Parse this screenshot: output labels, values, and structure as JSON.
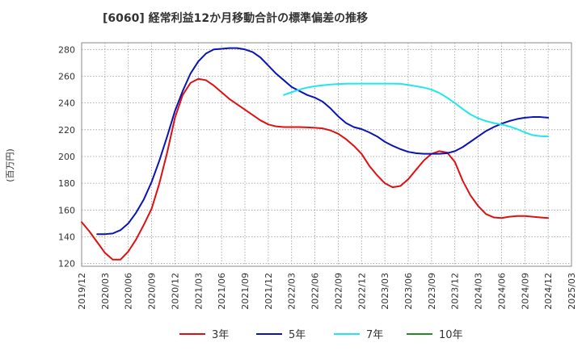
{
  "chart_data": {
    "type": "line",
    "title": "[6060]  経常利益12か月移動合計の標準偏差の推移",
    "ylabel": "(百万円)",
    "xlabel": "",
    "ylim": [
      118,
      285
    ],
    "yticks": [
      120,
      140,
      160,
      180,
      200,
      220,
      240,
      260,
      280
    ],
    "xlim": [
      "2019-12",
      "2025-03"
    ],
    "xticks": [
      "2019/12",
      "2020/03",
      "2020/06",
      "2020/09",
      "2020/12",
      "2021/03",
      "2021/06",
      "2021/09",
      "2021/12",
      "2022/03",
      "2022/06",
      "2022/09",
      "2022/12",
      "2023/03",
      "2023/06",
      "2023/09",
      "2023/12",
      "2024/03",
      "2024/06",
      "2024/09",
      "2024/12",
      "2025/03"
    ],
    "grid": true,
    "legend_position": "bottom",
    "series": [
      {
        "name": "3年",
        "color": "#dd1111",
        "points": [
          [
            "2019-12",
            151
          ],
          [
            "2020-01",
            144
          ],
          [
            "2020-02",
            136
          ],
          [
            "2020-03",
            128
          ],
          [
            "2020-04",
            123
          ],
          [
            "2020-05",
            123
          ],
          [
            "2020-06",
            129
          ],
          [
            "2020-07",
            138
          ],
          [
            "2020-08",
            149
          ],
          [
            "2020-09",
            161
          ],
          [
            "2020-10",
            180
          ],
          [
            "2020-11",
            203
          ],
          [
            "2020-12",
            229
          ],
          [
            "2021-01",
            246
          ],
          [
            "2021-02",
            255
          ],
          [
            "2021-03",
            258
          ],
          [
            "2021-04",
            257
          ],
          [
            "2021-05",
            253
          ],
          [
            "2021-06",
            248
          ],
          [
            "2021-07",
            243
          ],
          [
            "2021-08",
            239
          ],
          [
            "2021-09",
            235
          ],
          [
            "2021-10",
            231
          ],
          [
            "2021-11",
            227
          ],
          [
            "2021-12",
            224
          ],
          [
            "2022-01",
            222.5
          ],
          [
            "2022-02",
            222
          ],
          [
            "2022-03",
            222
          ],
          [
            "2022-04",
            222
          ],
          [
            "2022-05",
            221.8
          ],
          [
            "2022-06",
            221.5
          ],
          [
            "2022-07",
            221
          ],
          [
            "2022-08",
            219.5
          ],
          [
            "2022-09",
            217
          ],
          [
            "2022-10",
            213
          ],
          [
            "2022-11",
            208
          ],
          [
            "2022-12",
            202
          ],
          [
            "2023-01",
            193
          ],
          [
            "2023-02",
            186
          ],
          [
            "2023-03",
            180
          ],
          [
            "2023-04",
            177
          ],
          [
            "2023-05",
            178
          ],
          [
            "2023-06",
            183
          ],
          [
            "2023-07",
            190
          ],
          [
            "2023-08",
            197
          ],
          [
            "2023-09",
            202
          ],
          [
            "2023-10",
            204
          ],
          [
            "2023-11",
            203
          ],
          [
            "2023-12",
            196
          ],
          [
            "2024-01",
            182
          ],
          [
            "2024-02",
            171
          ],
          [
            "2024-03",
            163
          ],
          [
            "2024-04",
            157
          ],
          [
            "2024-05",
            154.5
          ],
          [
            "2024-06",
            154
          ],
          [
            "2024-07",
            155
          ],
          [
            "2024-08",
            155.5
          ],
          [
            "2024-09",
            155.5
          ],
          [
            "2024-10",
            155
          ],
          [
            "2024-11",
            154.5
          ],
          [
            "2024-12",
            154
          ]
        ]
      },
      {
        "name": "5年",
        "color": "#0a14b4",
        "points": [
          [
            "2020-02",
            142
          ],
          [
            "2020-03",
            142
          ],
          [
            "2020-04",
            142.5
          ],
          [
            "2020-05",
            145
          ],
          [
            "2020-06",
            150
          ],
          [
            "2020-07",
            158
          ],
          [
            "2020-08",
            168
          ],
          [
            "2020-09",
            181
          ],
          [
            "2020-10",
            197
          ],
          [
            "2020-11",
            215
          ],
          [
            "2020-12",
            234
          ],
          [
            "2021-01",
            249
          ],
          [
            "2021-02",
            262
          ],
          [
            "2021-03",
            271
          ],
          [
            "2021-04",
            277
          ],
          [
            "2021-05",
            280
          ],
          [
            "2021-06",
            280.5
          ],
          [
            "2021-07",
            281
          ],
          [
            "2021-08",
            281
          ],
          [
            "2021-09",
            280
          ],
          [
            "2021-10",
            278
          ],
          [
            "2021-11",
            274
          ],
          [
            "2021-12",
            268
          ],
          [
            "2022-01",
            262
          ],
          [
            "2022-02",
            257
          ],
          [
            "2022-03",
            252
          ],
          [
            "2022-04",
            249
          ],
          [
            "2022-05",
            246
          ],
          [
            "2022-06",
            244
          ],
          [
            "2022-07",
            241
          ],
          [
            "2022-08",
            236
          ],
          [
            "2022-09",
            230
          ],
          [
            "2022-10",
            225
          ],
          [
            "2022-11",
            222
          ],
          [
            "2022-12",
            220.5
          ],
          [
            "2023-01",
            218
          ],
          [
            "2023-02",
            215
          ],
          [
            "2023-03",
            211
          ],
          [
            "2023-04",
            208
          ],
          [
            "2023-05",
            205.5
          ],
          [
            "2023-06",
            203.5
          ],
          [
            "2023-07",
            202.5
          ],
          [
            "2023-08",
            202
          ],
          [
            "2023-09",
            202
          ],
          [
            "2023-10",
            202
          ],
          [
            "2023-11",
            202.5
          ],
          [
            "2023-12",
            204
          ],
          [
            "2024-01",
            207
          ],
          [
            "2024-02",
            211
          ],
          [
            "2024-03",
            215
          ],
          [
            "2024-04",
            219
          ],
          [
            "2024-05",
            222
          ],
          [
            "2024-06",
            224.5
          ],
          [
            "2024-07",
            226.5
          ],
          [
            "2024-08",
            228
          ],
          [
            "2024-09",
            229
          ],
          [
            "2024-10",
            229.5
          ],
          [
            "2024-11",
            229.5
          ],
          [
            "2024-12",
            229
          ]
        ]
      },
      {
        "name": "7年",
        "color": "#22e6ee",
        "points": [
          [
            "2022-02",
            246
          ],
          [
            "2022-03",
            248
          ],
          [
            "2022-04",
            250
          ],
          [
            "2022-05",
            251.5
          ],
          [
            "2022-06",
            252.5
          ],
          [
            "2022-07",
            253.2
          ],
          [
            "2022-08",
            253.8
          ],
          [
            "2022-09",
            254.2
          ],
          [
            "2022-10",
            254.4
          ],
          [
            "2022-11",
            254.5
          ],
          [
            "2022-12",
            254.5
          ],
          [
            "2023-01",
            254.5
          ],
          [
            "2023-02",
            254.5
          ],
          [
            "2023-03",
            254.5
          ],
          [
            "2023-04",
            254.5
          ],
          [
            "2023-05",
            254.3
          ],
          [
            "2023-06",
            253.5
          ],
          [
            "2023-07",
            252.5
          ],
          [
            "2023-08",
            251.5
          ],
          [
            "2023-09",
            250
          ],
          [
            "2023-10",
            247.5
          ],
          [
            "2023-11",
            244
          ],
          [
            "2023-12",
            240
          ],
          [
            "2024-01",
            235.5
          ],
          [
            "2024-02",
            231.5
          ],
          [
            "2024-03",
            228.5
          ],
          [
            "2024-04",
            226.5
          ],
          [
            "2024-05",
            225
          ],
          [
            "2024-06",
            224
          ],
          [
            "2024-07",
            222.5
          ],
          [
            "2024-08",
            220.5
          ],
          [
            "2024-09",
            218
          ],
          [
            "2024-10",
            216
          ],
          [
            "2024-11",
            215.2
          ],
          [
            "2024-12",
            215
          ]
        ]
      },
      {
        "name": "10年",
        "color": "#228b22",
        "points": []
      }
    ]
  }
}
